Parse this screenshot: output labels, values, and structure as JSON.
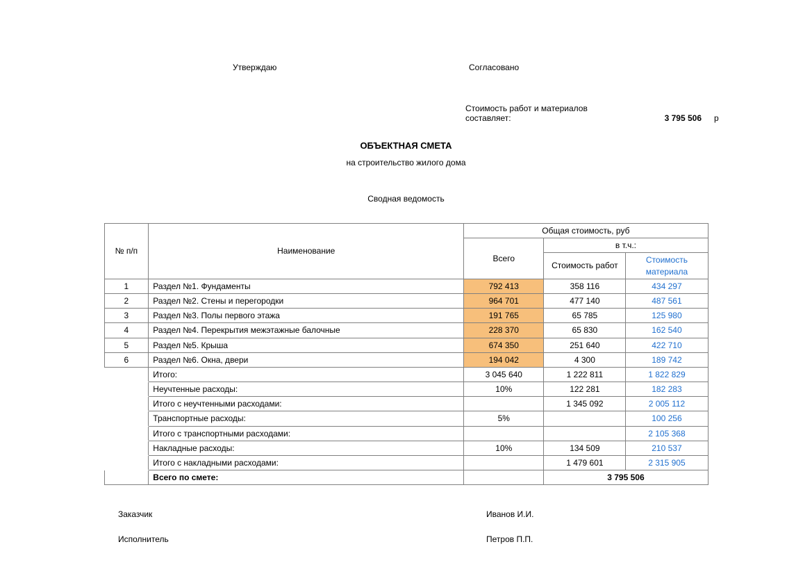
{
  "header": {
    "approve": "Утверждаю",
    "agree": "Согласовано",
    "cost_label_l1": "Стоимость работ и материалов",
    "cost_label_l2": "составляет:",
    "cost_value": "3 795 506",
    "ruble": "р"
  },
  "titles": {
    "main": "ОБЪЕКТНАЯ СМЕТА",
    "subtitle": "на строительство жилого дома",
    "sheet": "Сводная ведомость"
  },
  "table": {
    "colors": {
      "header_total_bg": "#fdd6a7",
      "row_total_bg": "#f7bf7b",
      "link_color": "#1f6fcf",
      "border": "#808080"
    },
    "headers": {
      "num": "№ п/п",
      "name": "Наименование",
      "cost_group": "Общая стоимость, руб",
      "incl": "в т.ч.:",
      "total": "Всего",
      "work": "Стоимость работ",
      "material": "Стоимость материала"
    },
    "rows": [
      {
        "num": "1",
        "name": "Раздел №1. Фундаменты",
        "total": "792 413",
        "work": "358 116",
        "mat": "434 297"
      },
      {
        "num": "2",
        "name": "Раздел №2. Стены и перегородки",
        "total": "964 701",
        "work": "477 140",
        "mat": "487 561"
      },
      {
        "num": "3",
        "name": "Раздел №3. Полы первого этажа",
        "total": "191 765",
        "work": "65 785",
        "mat": "125 980"
      },
      {
        "num": "4",
        "name": "Раздел №4. Перекрытия межэтажные балочные",
        "total": "228 370",
        "work": "65 830",
        "mat": "162 540"
      },
      {
        "num": "5",
        "name": "Раздел №5. Крыша",
        "total": "674 350",
        "work": "251 640",
        "mat": "422 710"
      },
      {
        "num": "6",
        "name": "Раздел №6. Окна, двери",
        "total": "194 042",
        "work": "4 300",
        "mat": "189 742"
      }
    ],
    "totals": [
      {
        "name": "Итого:",
        "total": "3 045 640",
        "work": "1 222 811",
        "mat": "1 822 829"
      },
      {
        "name": "Неучтенные расходы:",
        "total": "10%",
        "work": "122 281",
        "mat": "182 283"
      },
      {
        "name": "Итого с неучтенными расходами:",
        "total": "",
        "work": "1 345 092",
        "mat": "2 005 112"
      },
      {
        "name": "Транспортные расходы:",
        "total": "5%",
        "work": "",
        "mat": "100 256"
      },
      {
        "name": "Итого с транспортными расходами:",
        "total": "",
        "work": "",
        "mat": "2 105 368"
      },
      {
        "name": "Накладные расходы:",
        "total": "10%",
        "work": "134 509",
        "mat": "210 537"
      },
      {
        "name": "Итого с накладными расходами:",
        "total": "",
        "work": "1 479 601",
        "mat": "2 315 905"
      }
    ],
    "grand": {
      "name": "Всего по смете:",
      "value": "3 795 506"
    }
  },
  "signatures": {
    "customer_role": "Заказчик",
    "customer_name": "Иванов И.И.",
    "executor_role": "Исполнитель",
    "executor_name": "Петров П.П."
  }
}
